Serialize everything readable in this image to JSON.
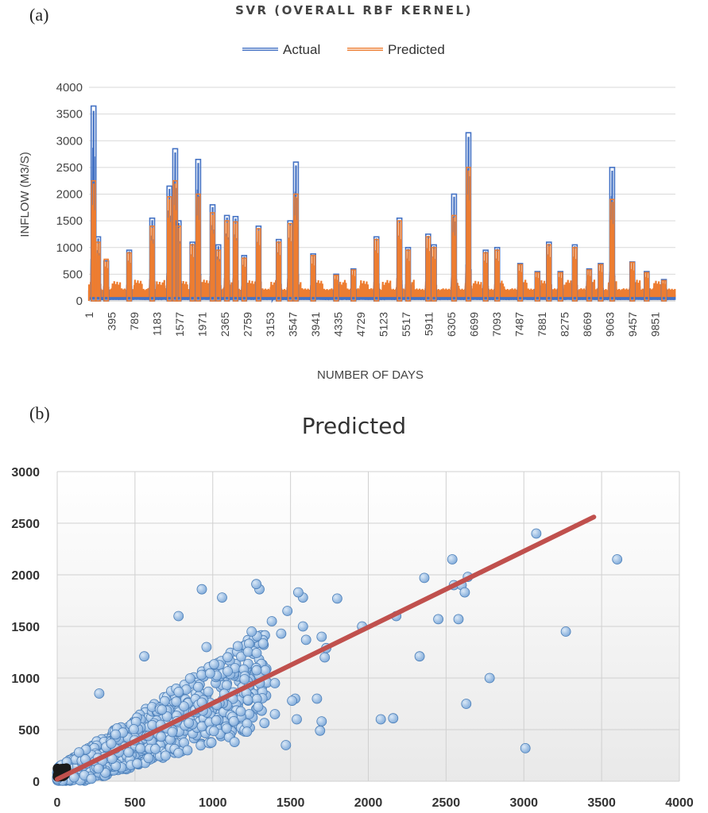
{
  "chart_data": [
    {
      "panel_label": "(a)",
      "type": "line",
      "title": "SVR (OVERALL RBF KERNEL)",
      "xlabel": "NUMBER OF DAYS",
      "ylabel": "INFLOW (M3/S)",
      "ylim": [
        0,
        4000
      ],
      "yticks": [
        0,
        500,
        1000,
        1500,
        2000,
        2500,
        3000,
        3500,
        4000
      ],
      "xlim": [
        1,
        10200
      ],
      "xticks": [
        1,
        395,
        789,
        1183,
        1577,
        1971,
        2365,
        2759,
        3153,
        3547,
        3941,
        4335,
        4729,
        5123,
        5517,
        5911,
        6305,
        6699,
        7093,
        7487,
        7881,
        8275,
        8669,
        9063,
        9457,
        9851
      ],
      "grid": true,
      "legend_position": "top",
      "colors": {
        "actual": "#4472c4",
        "predicted": "#ed7d31"
      },
      "series": [
        {
          "name": "Actual",
          "peaks": [
            [
              80,
              3650
            ],
            [
              160,
              1200
            ],
            [
              300,
              750
            ],
            [
              700,
              950
            ],
            [
              1100,
              1550
            ],
            [
              1400,
              2150
            ],
            [
              1500,
              2850
            ],
            [
              1560,
              1500
            ],
            [
              1800,
              1100
            ],
            [
              1900,
              2650
            ],
            [
              2150,
              1800
            ],
            [
              2250,
              1050
            ],
            [
              2400,
              1600
            ],
            [
              2550,
              1580
            ],
            [
              2700,
              850
            ],
            [
              2950,
              1400
            ],
            [
              3300,
              1150
            ],
            [
              3500,
              1500
            ],
            [
              3600,
              2600
            ],
            [
              3900,
              880
            ],
            [
              4300,
              500
            ],
            [
              4600,
              600
            ],
            [
              5000,
              1200
            ],
            [
              5400,
              1550
            ],
            [
              5550,
              1000
            ],
            [
              5900,
              1250
            ],
            [
              6000,
              1050
            ],
            [
              6350,
              2000
            ],
            [
              6600,
              3150
            ],
            [
              6900,
              950
            ],
            [
              7100,
              1000
            ],
            [
              7500,
              700
            ],
            [
              7800,
              550
            ],
            [
              8000,
              1100
            ],
            [
              8200,
              550
            ],
            [
              8450,
              1050
            ],
            [
              8700,
              600
            ],
            [
              8900,
              700
            ],
            [
              9100,
              2500
            ],
            [
              9450,
              730
            ],
            [
              9700,
              550
            ],
            [
              10000,
              400
            ]
          ]
        },
        {
          "name": "Predicted",
          "peaks": [
            [
              80,
              2250
            ],
            [
              160,
              1100
            ],
            [
              300,
              780
            ],
            [
              700,
              900
            ],
            [
              1100,
              1400
            ],
            [
              1400,
              1950
            ],
            [
              1500,
              2250
            ],
            [
              1560,
              1400
            ],
            [
              1800,
              1050
            ],
            [
              1900,
              2000
            ],
            [
              2150,
              1650
            ],
            [
              2250,
              950
            ],
            [
              2400,
              1500
            ],
            [
              2550,
              1480
            ],
            [
              2700,
              800
            ],
            [
              2950,
              1350
            ],
            [
              3300,
              1100
            ],
            [
              3500,
              1450
            ],
            [
              3600,
              2000
            ],
            [
              3900,
              850
            ],
            [
              4300,
              480
            ],
            [
              4600,
              580
            ],
            [
              5000,
              1150
            ],
            [
              5400,
              1500
            ],
            [
              5550,
              950
            ],
            [
              5900,
              1200
            ],
            [
              6000,
              1000
            ],
            [
              6350,
              1600
            ],
            [
              6600,
              2500
            ],
            [
              6900,
              900
            ],
            [
              7100,
              950
            ],
            [
              7500,
              680
            ],
            [
              7800,
              530
            ],
            [
              8000,
              1050
            ],
            [
              8200,
              530
            ],
            [
              8450,
              1000
            ],
            [
              8700,
              580
            ],
            [
              8900,
              680
            ],
            [
              9100,
              1900
            ],
            [
              9450,
              720
            ],
            [
              9700,
              530
            ],
            [
              10000,
              380
            ]
          ]
        }
      ]
    },
    {
      "panel_label": "(b)",
      "type": "scatter",
      "title": "Predicted",
      "xlim": [
        0,
        4000
      ],
      "ylim": [
        0,
        3000
      ],
      "xticks": [
        0,
        500,
        1000,
        1500,
        2000,
        2500,
        3000,
        3500,
        4000
      ],
      "yticks": [
        0,
        500,
        1000,
        1500,
        2000,
        2500,
        3000
      ],
      "grid": true,
      "colors": {
        "points": "#9dc3e6",
        "point_edge": "#4a7eb8",
        "trendline": "#c0504d",
        "dense_cluster": "#1a1a1a"
      },
      "points": [
        [
          3600,
          2150
        ],
        [
          3080,
          2400
        ],
        [
          3270,
          1450
        ],
        [
          3010,
          320
        ],
        [
          2780,
          1000
        ],
        [
          2630,
          750
        ],
        [
          2640,
          1980
        ],
        [
          2540,
          2150
        ],
        [
          2550,
          1900
        ],
        [
          2600,
          1900
        ],
        [
          2620,
          1830
        ],
        [
          2580,
          1570
        ],
        [
          2450,
          1570
        ],
        [
          2360,
          1970
        ],
        [
          2330,
          1210
        ],
        [
          2180,
          1600
        ],
        [
          2160,
          610
        ],
        [
          2080,
          600
        ],
        [
          1960,
          1500
        ],
        [
          1800,
          1770
        ],
        [
          1580,
          1780
        ],
        [
          1550,
          1830
        ],
        [
          1580,
          1500
        ],
        [
          1480,
          1650
        ],
        [
          1440,
          1430
        ],
        [
          1600,
          1370
        ],
        [
          1700,
          1400
        ],
        [
          1720,
          1200
        ],
        [
          1730,
          1290
        ],
        [
          1700,
          580
        ],
        [
          1690,
          490
        ],
        [
          1670,
          800
        ],
        [
          1530,
          800
        ],
        [
          1510,
          780
        ],
        [
          1540,
          600
        ],
        [
          1470,
          350
        ],
        [
          1400,
          950
        ],
        [
          1400,
          650
        ],
        [
          1380,
          1550
        ],
        [
          1300,
          1860
        ],
        [
          1280,
          1910
        ],
        [
          1250,
          1450
        ],
        [
          1220,
          480
        ],
        [
          1140,
          380
        ],
        [
          1060,
          1780
        ],
        [
          930,
          1860
        ],
        [
          960,
          1300
        ],
        [
          780,
          1600
        ],
        [
          560,
          1210
        ],
        [
          270,
          850
        ],
        [
          140,
          280
        ]
      ],
      "trendline": [
        [
          0,
          20
        ],
        [
          3450,
          2560
        ]
      ]
    }
  ]
}
